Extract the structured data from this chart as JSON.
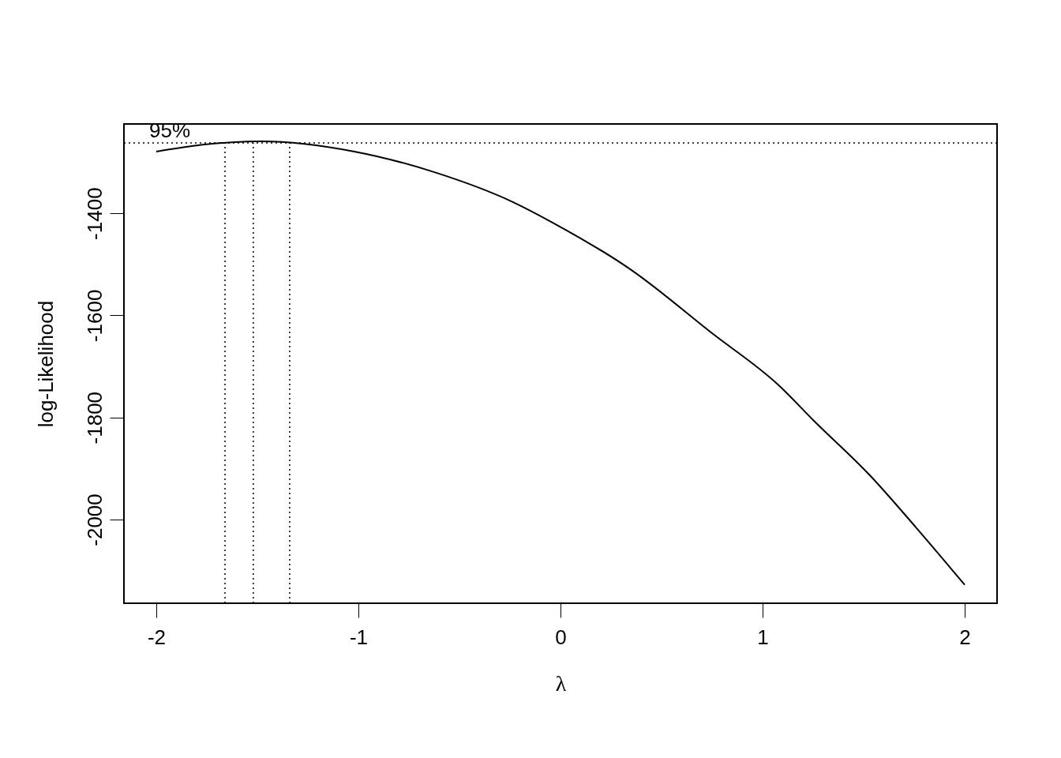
{
  "chart_data": {
    "type": "line",
    "xlabel": "λ",
    "ylabel": "log-Likelihood",
    "x": [
      -2,
      -1.8,
      -1.48,
      -1.02,
      -0.62,
      -0.23,
      -0.04,
      0.35,
      0.75,
      1.08,
      1.25,
      1.53,
      1.76,
      2
    ],
    "series": [
      {
        "color": "#000000",
        "values": [
          -1279,
          -1267,
          -1259,
          -1279,
          -1320,
          -1379,
          -1418,
          -1511,
          -1635,
          -1737,
          -1805,
          -1913,
          -2016,
          -2128
        ]
      }
    ],
    "xlim": [
      -2.16,
      2.16
    ],
    "xticks": [
      -2,
      -1,
      0,
      1,
      2
    ],
    "ylim": [
      -2164,
      -1225
    ],
    "yticks": [
      -2000,
      -1800,
      -1600,
      -1400
    ],
    "ref_lines": [
      {
        "axis": "y",
        "value": -1262,
        "color": "#000000",
        "line_style": "dotted"
      },
      {
        "axis": "x",
        "value": -1.66,
        "color": "#000000",
        "line_style": "dotted"
      },
      {
        "axis": "x",
        "value": -1.52,
        "color": "#000000",
        "line_style": "dotted"
      },
      {
        "axis": "x",
        "value": -1.34,
        "color": "#000000",
        "line_style": "dotted"
      }
    ],
    "annotations": [
      "95%"
    ],
    "grid": false,
    "marker": "none",
    "line_style": "solid"
  }
}
